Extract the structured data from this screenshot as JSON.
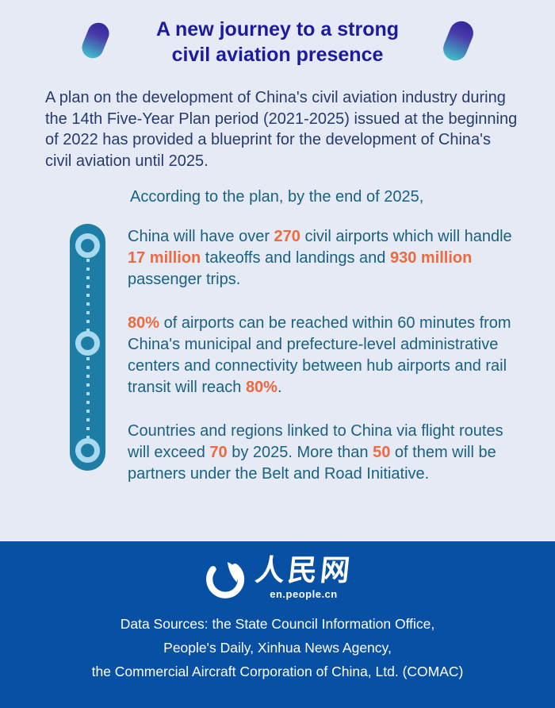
{
  "header": {
    "title_line1": "A new journey to a strong",
    "title_line2": "civil aviation presence"
  },
  "intro": {
    "text": "A plan on the development of China's civil aviation industry during the 14th Five-Year Plan period (2021-2025) issued at the beginning of 2022 has provided a blueprint for the development of China's civil aviation until 2025."
  },
  "lead": {
    "text": "According to the plan, by the end of 2025,"
  },
  "bullets": [
    {
      "segments": [
        {
          "t": "China will have over ",
          "hl": false
        },
        {
          "t": "270",
          "hl": true
        },
        {
          "t": " civil airports which will handle ",
          "hl": false
        },
        {
          "t": "17 million",
          "hl": true
        },
        {
          "t": " takeoffs and landings and ",
          "hl": false
        },
        {
          "t": "930 million",
          "hl": true
        },
        {
          "t": " passenger trips.",
          "hl": false
        }
      ]
    },
    {
      "segments": [
        {
          "t": "80%",
          "hl": true
        },
        {
          "t": " of airports can be reached within 60 minutes from China's municipal and prefecture-level administrative centers and connectivity between hub airports and rail transit will reach ",
          "hl": false
        },
        {
          "t": "80%",
          "hl": true
        },
        {
          "t": ".",
          "hl": false
        }
      ]
    },
    {
      "segments": [
        {
          "t": "Countries and regions linked to China via flight routes will exceed ",
          "hl": false
        },
        {
          "t": "70",
          "hl": true
        },
        {
          "t": " by 2025. More than ",
          "hl": false
        },
        {
          "t": "50",
          "hl": true
        },
        {
          "t": " of them will be partners under the Belt and Road Initiative.",
          "hl": false
        }
      ]
    }
  ],
  "footer": {
    "logo_cn": "人民网",
    "logo_domain": "en.people.cn",
    "sources_line1": "Data Sources: the State Council Information Office,",
    "sources_line2": "People's Daily, Xinhua News Agency,",
    "sources_line3": "the Commercial Aircraft Corporation of China, Ltd. (COMAC)"
  },
  "icons": {
    "logo_globe": "peoples-daily-globe-icon",
    "timeline_nodes": "ring-circle-icon"
  },
  "colors": {
    "background": "#e5eaf4",
    "title_indigo": "#1d1a9e",
    "intro_navy": "#263a6f",
    "body_teal": "#1a6183",
    "accent_orange": "#ec6a41",
    "timeline_teal": "#1e7da4",
    "timeline_ring_light": "#a9d9ef",
    "footer_blue": "#0850a4",
    "capsule_gradient_top": "#32279e",
    "capsule_gradient_bottom": "#3fc0c9"
  }
}
